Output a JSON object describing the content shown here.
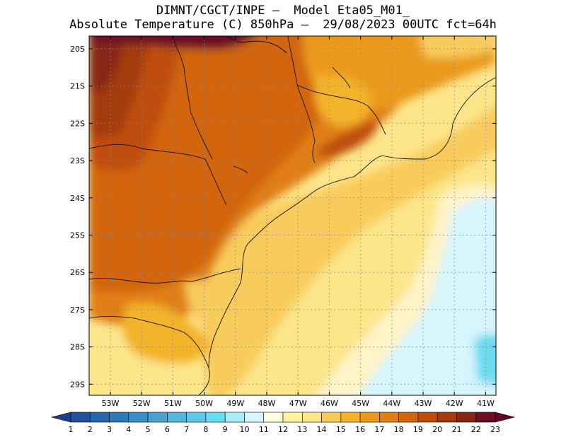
{
  "header": {
    "line1": "DIMNT/CGCT/INPE –  Model Eta05_M01_",
    "line2": "Absolute Temperature (C) 850hPa –  29/08/2023 00UTC fct=64h"
  },
  "map": {
    "lat_labels": [
      "20S",
      "21S",
      "22S",
      "23S",
      "24S",
      "25S",
      "26S",
      "27S",
      "28S",
      "29S"
    ],
    "lon_labels": [
      "53W",
      "52W",
      "51W",
      "50W",
      "49W",
      "48W",
      "47W",
      "46W",
      "45W",
      "44W",
      "43W",
      "42W",
      "41W"
    ],
    "variable": "Absolute Temperature",
    "units": "C",
    "level": "850hPa"
  },
  "colorbar": {
    "labels": [
      "1",
      "2",
      "3",
      "4",
      "5",
      "6",
      "7",
      "8",
      "9",
      "10",
      "11",
      "12",
      "13",
      "14",
      "15",
      "16",
      "17",
      "18",
      "19",
      "20",
      "21",
      "22",
      "23"
    ],
    "colors": [
      "#1f3d8c",
      "#21509c",
      "#2666ab",
      "#2c7ab9",
      "#3a8fc4",
      "#4aa2cd",
      "#56b5d8",
      "#5ec8e6",
      "#6adcf2",
      "#a9ecf9",
      "#d6f5fd",
      "#fffde0",
      "#fff3a0",
      "#fde58a",
      "#f8cc5c",
      "#f3b32a",
      "#eb9a1a",
      "#e07f12",
      "#d2650d",
      "#bf4e0c",
      "#a33a10",
      "#862614",
      "#6a0f26",
      "#5c0a28"
    ]
  }
}
